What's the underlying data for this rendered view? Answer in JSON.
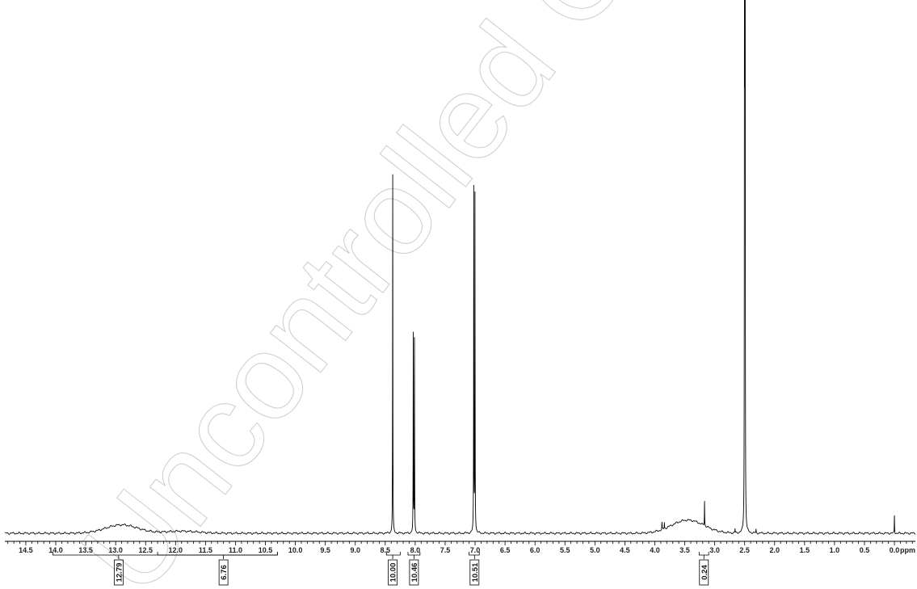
{
  "watermark": "Uncontrolled Copy",
  "chart_data": {
    "type": "line",
    "xlabel": "ppm",
    "xlim": [
      14.85,
      -0.35
    ],
    "ticks": [
      14.5,
      14.0,
      13.5,
      13.0,
      12.5,
      12.0,
      11.5,
      11.0,
      10.5,
      10.0,
      9.5,
      9.0,
      8.5,
      8.0,
      7.5,
      7.0,
      6.5,
      6.0,
      5.5,
      5.0,
      4.5,
      4.0,
      3.5,
      3.0,
      2.5,
      2.0,
      1.5,
      1.0,
      0.5,
      0.0
    ],
    "tick_labels": [
      "14.5",
      "14.0",
      "13.5",
      "13.0",
      "12.5",
      "12.0",
      "11.5",
      "11.0",
      "10.5",
      "10.0",
      "9.5",
      "9.0",
      "8.5",
      "8.0",
      "7.5",
      "7.0",
      "6.5",
      "6.0",
      "5.5",
      "5.0",
      "4.5",
      "4.0",
      "3.5",
      "3.0",
      "2.5",
      "2.0",
      "1.5",
      "1.0",
      "0.5",
      "0.0"
    ],
    "ylim": [
      0,
      1
    ],
    "peaks": [
      {
        "ppm": 8.375,
        "height": 0.685
      },
      {
        "ppm": 8.032,
        "height": 0.375
      },
      {
        "ppm": 8.012,
        "height": 0.372
      },
      {
        "ppm": 7.022,
        "height": 0.65
      },
      {
        "ppm": 7.002,
        "height": 0.648
      },
      {
        "ppm": 2.503,
        "height": 0.9
      },
      {
        "ppm": 2.497,
        "height": 1.0
      },
      {
        "ppm": 2.491,
        "height": 0.9
      },
      {
        "ppm": 3.17,
        "height": 0.048
      },
      {
        "ppm": 0.0,
        "height": 0.035
      },
      {
        "ppm": 3.88,
        "height": 0.014
      },
      {
        "ppm": 3.84,
        "height": 0.012
      },
      {
        "ppm": 2.66,
        "height": 0.008
      },
      {
        "ppm": 2.31,
        "height": 0.007
      }
    ],
    "broad_humps": [
      {
        "ppm": 12.9,
        "height": 0.016
      },
      {
        "ppm": 11.9,
        "height": 0.004
      },
      {
        "ppm": 3.45,
        "height": 0.025
      }
    ],
    "integrals": [
      {
        "from": 14.05,
        "to": 10.3,
        "value": "12.79",
        "label_ppm": 12.95
      },
      {
        "from": 12.3,
        "to": 10.3,
        "value": "6.76",
        "label_ppm": 11.2
      },
      {
        "from": 8.48,
        "to": 8.25,
        "value": "10.00",
        "label_ppm": 8.375
      },
      {
        "from": 8.12,
        "to": 7.92,
        "value": "10.46",
        "label_ppm": 8.02
      },
      {
        "from": 7.1,
        "to": 6.93,
        "value": "10.51",
        "label_ppm": 7.01
      },
      {
        "from": 3.26,
        "to": 3.1,
        "value": "0.24",
        "label_ppm": 3.18
      }
    ]
  }
}
